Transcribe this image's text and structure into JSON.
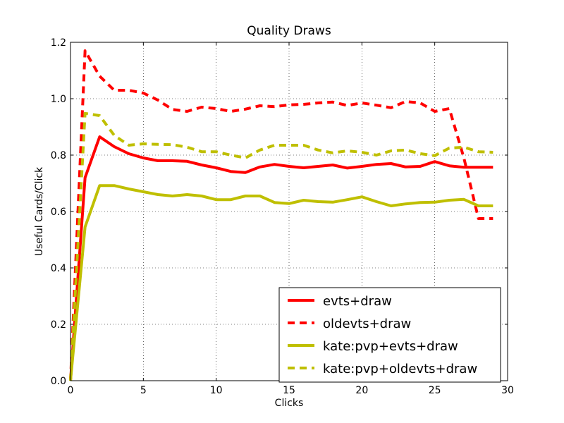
{
  "chart_data": {
    "type": "line",
    "title": "Quality Draws",
    "xlabel": "Clicks",
    "ylabel": "Useful Cards/Click",
    "xlim": [
      0,
      30
    ],
    "ylim": [
      0.0,
      1.2
    ],
    "xticks": [
      "0",
      "5",
      "10",
      "15",
      "20",
      "25",
      "30"
    ],
    "yticks": [
      "0.0",
      "0.2",
      "0.4",
      "0.6",
      "0.8",
      "1.0",
      "1.2"
    ],
    "grid": true,
    "legend_position": "lower-right",
    "x": [
      0,
      1,
      2,
      3,
      4,
      5,
      6,
      7,
      8,
      9,
      10,
      11,
      12,
      13,
      14,
      15,
      16,
      17,
      18,
      19,
      20,
      21,
      22,
      23,
      24,
      25,
      26,
      27,
      28,
      29
    ],
    "series": [
      {
        "name": "evts+draw",
        "color": "#ff0000",
        "style": "solid",
        "values": [
          0.0,
          0.72,
          0.865,
          0.83,
          0.805,
          0.79,
          0.78,
          0.78,
          0.778,
          0.765,
          0.755,
          0.742,
          0.738,
          0.758,
          0.767,
          0.76,
          0.755,
          0.76,
          0.765,
          0.754,
          0.76,
          0.767,
          0.77,
          0.758,
          0.76,
          0.777,
          0.762,
          0.757,
          0.757,
          0.757
        ]
      },
      {
        "name": "oldevts+draw",
        "color": "#ff0000",
        "style": "dashed",
        "values": [
          0.0,
          1.17,
          1.08,
          1.03,
          1.03,
          1.02,
          0.995,
          0.962,
          0.955,
          0.97,
          0.965,
          0.955,
          0.963,
          0.975,
          0.972,
          0.978,
          0.98,
          0.985,
          0.988,
          0.976,
          0.985,
          0.977,
          0.968,
          0.99,
          0.985,
          0.955,
          0.965,
          0.79,
          0.575,
          0.575
        ]
      },
      {
        "name": "kate:pvp+evts+draw",
        "color": "#bfbf00",
        "style": "solid",
        "values": [
          0.0,
          0.545,
          0.692,
          0.692,
          0.68,
          0.67,
          0.66,
          0.655,
          0.66,
          0.655,
          0.642,
          0.642,
          0.655,
          0.655,
          0.632,
          0.628,
          0.64,
          0.635,
          0.633,
          0.642,
          0.652,
          0.635,
          0.62,
          0.627,
          0.632,
          0.633,
          0.64,
          0.643,
          0.62,
          0.62
        ]
      },
      {
        "name": "kate:pvp+oldevts+draw",
        "color": "#bfbf00",
        "style": "dashed",
        "values": [
          0.0,
          0.948,
          0.94,
          0.87,
          0.835,
          0.84,
          0.838,
          0.837,
          0.828,
          0.812,
          0.812,
          0.8,
          0.79,
          0.818,
          0.835,
          0.835,
          0.835,
          0.818,
          0.808,
          0.815,
          0.81,
          0.8,
          0.815,
          0.818,
          0.805,
          0.798,
          0.825,
          0.828,
          0.812,
          0.81
        ]
      }
    ]
  }
}
